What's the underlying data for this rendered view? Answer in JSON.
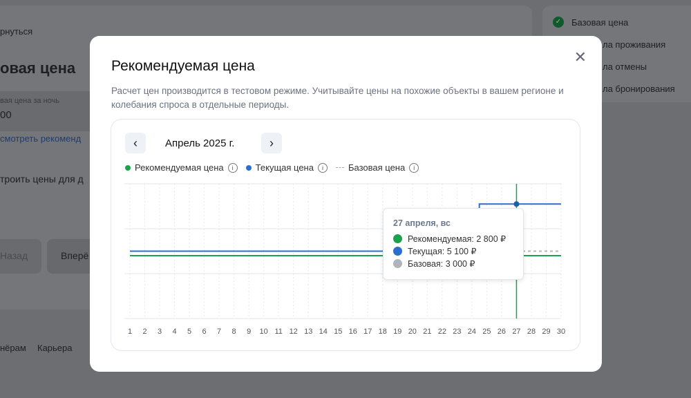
{
  "background": {
    "back_link": "рнуться",
    "heading": "овая цена",
    "field_label": "вая цена за ночь",
    "field_value": "00",
    "link": "смотреть рекоменд",
    "setup": "троить цены для д",
    "back_btn": "Назад",
    "next_btn": "Вперё",
    "footer": [
      "нёрам",
      "Карьера"
    ],
    "steps": [
      "Базовая цена",
      "ла проживания",
      "ла отмены",
      "ла бронирования"
    ]
  },
  "modal": {
    "title": "Рекомендуемая цена",
    "description": "Расчет цен производится в тестовом режиме. Учитывайте цены на похожие объекты в вашем регионе и колебания спроса в отдельные периоды.",
    "month": "Апрель 2025 г.",
    "prev": "‹",
    "next": "›",
    "close": "✕",
    "info": "i"
  },
  "colors": {
    "recommended": "#1aa34a",
    "current": "#2a6fd0",
    "base": "#b0b5bd"
  },
  "chart_data": {
    "type": "line",
    "x": [
      1,
      2,
      3,
      4,
      5,
      6,
      7,
      8,
      9,
      10,
      11,
      12,
      13,
      14,
      15,
      16,
      17,
      18,
      19,
      20,
      21,
      22,
      23,
      24,
      25,
      26,
      27,
      28,
      29,
      30
    ],
    "series": [
      {
        "name": "Рекомендуемая цена",
        "values": [
          2800,
          2800,
          2800,
          2800,
          2800,
          2800,
          2800,
          2800,
          2800,
          2800,
          2800,
          2800,
          2800,
          2800,
          2800,
          2800,
          2800,
          2800,
          2800,
          2800,
          2800,
          2800,
          2800,
          2800,
          2800,
          2800,
          2800,
          2800,
          2800,
          2800
        ]
      },
      {
        "name": "Текущая цена",
        "values": [
          3000,
          3000,
          3000,
          3000,
          3000,
          3000,
          3000,
          3000,
          3000,
          3000,
          3000,
          3000,
          3000,
          3000,
          3000,
          3000,
          3000,
          3000,
          3000,
          3000,
          3000,
          3000,
          3000,
          3000,
          5100,
          5100,
          5100,
          5100,
          5100,
          5100
        ]
      },
      {
        "name": "Базовая цена",
        "values": [
          3000,
          3000,
          3000,
          3000,
          3000,
          3000,
          3000,
          3000,
          3000,
          3000,
          3000,
          3000,
          3000,
          3000,
          3000,
          3000,
          3000,
          3000,
          3000,
          3000,
          3000,
          3000,
          3000,
          3000,
          3000,
          3000,
          3000,
          3000,
          3000,
          3000
        ]
      }
    ],
    "ylim": [
      0,
      6000
    ],
    "highlight_day": 27,
    "tooltip": {
      "date": "27 апреля, вс",
      "rows": [
        "Рекомендуемая: 2 800 ₽",
        "Текущая: 5 100 ₽",
        "Базовая: 3 000 ₽"
      ]
    }
  }
}
